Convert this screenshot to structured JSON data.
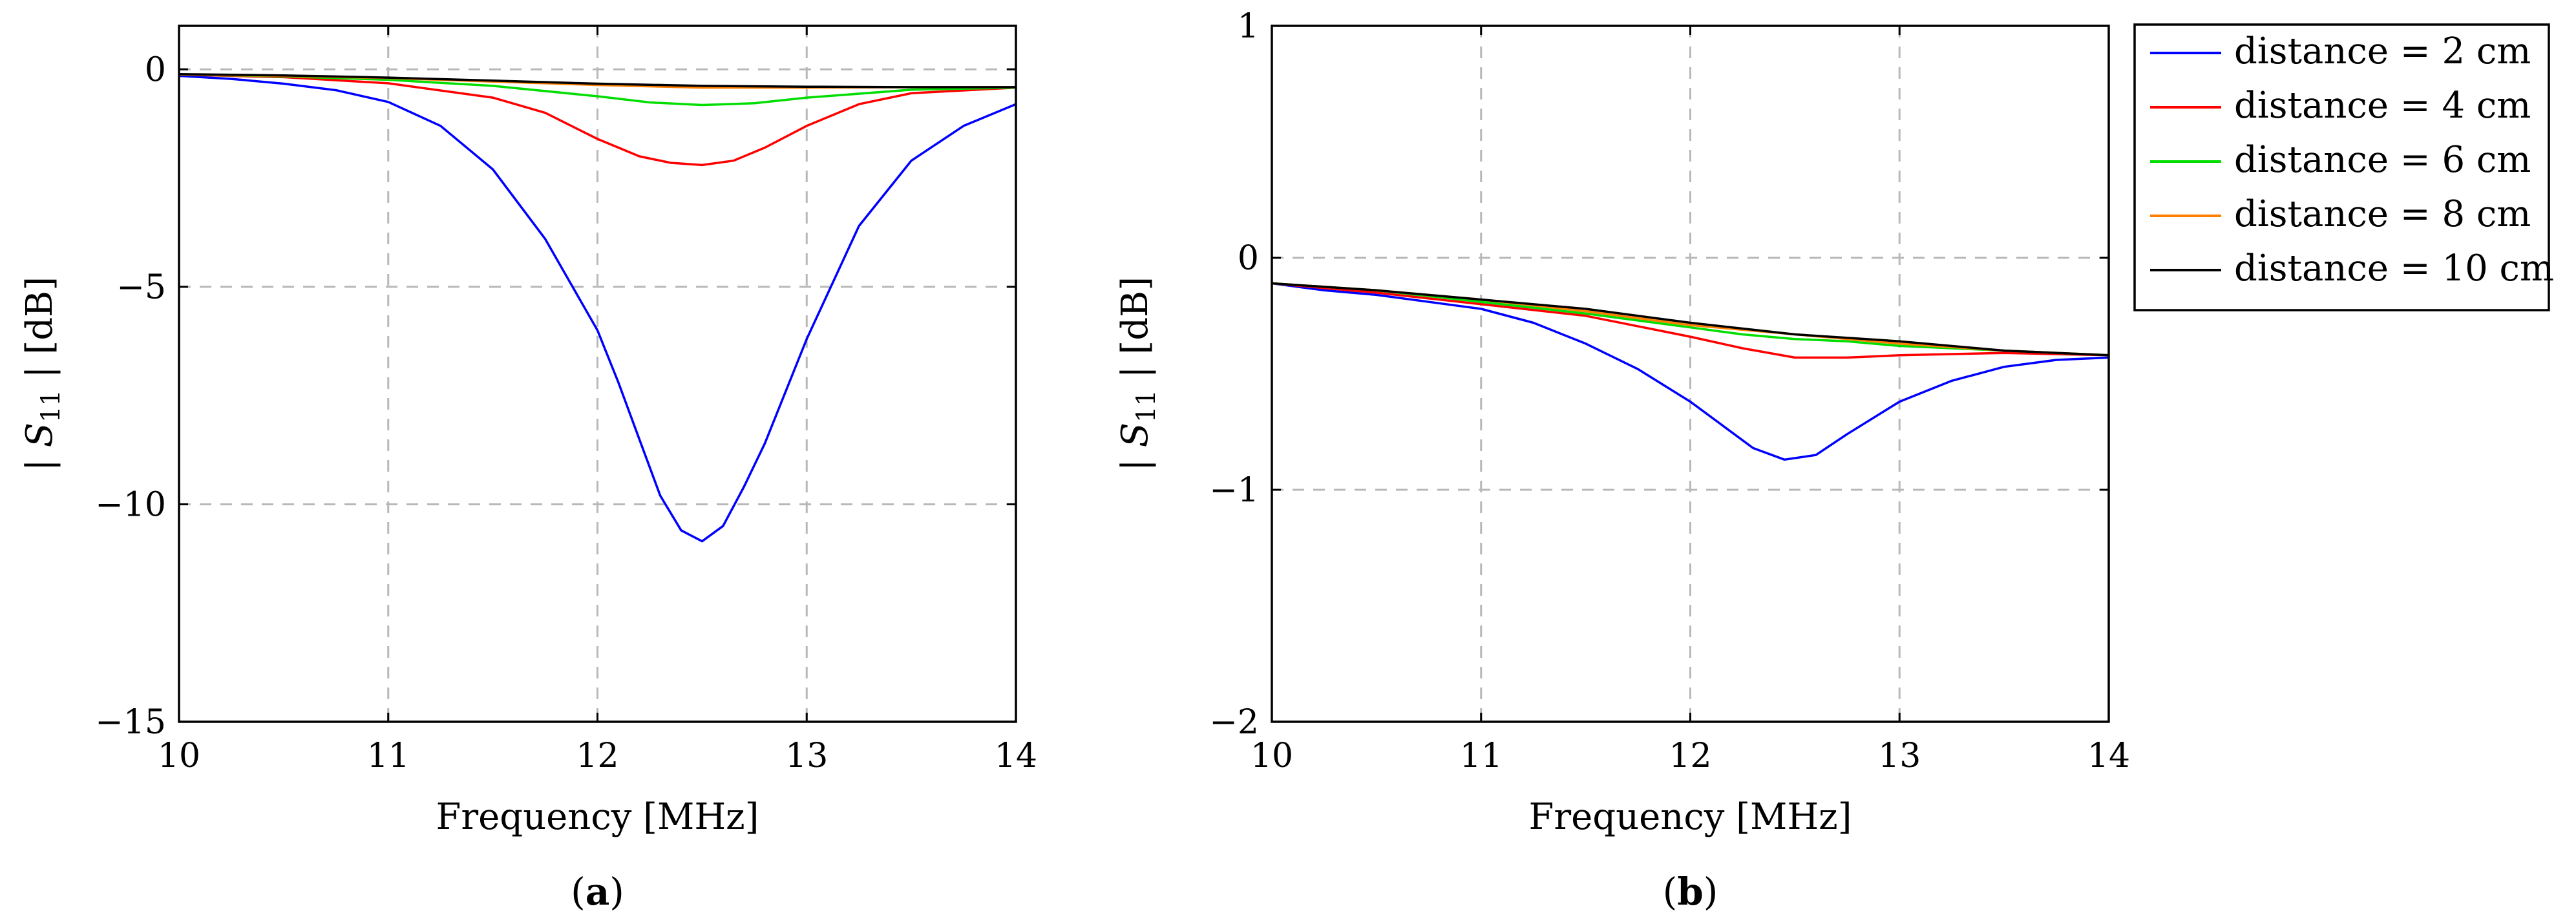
{
  "chart_data": [
    {
      "type": "line",
      "panel": "a",
      "caption_open": "(",
      "caption_letter": "a",
      "caption_close": ")",
      "xlabel": "Frequency [MHz]",
      "ylabel": "| S11 | [dB]",
      "ylabel_parts": {
        "pre": "| ",
        "main": "S",
        "sub": "11",
        "post": " | [dB]"
      },
      "xlim": [
        10,
        14
      ],
      "ylim": [
        -15,
        1
      ],
      "xticks": [
        10,
        11,
        12,
        13,
        14
      ],
      "yticks": [
        -15,
        -10,
        -5,
        0
      ],
      "xtick_labels": [
        "10",
        "11",
        "12",
        "13",
        "14"
      ],
      "ytick_labels": [
        "−15",
        "−10",
        "−5",
        "0"
      ],
      "grid": true,
      "series": [
        {
          "name": "distance = 2 cm",
          "color": "#0000ff",
          "x": [
            10.0,
            10.25,
            10.5,
            10.75,
            11.0,
            11.25,
            11.5,
            11.75,
            12.0,
            12.1,
            12.2,
            12.3,
            12.4,
            12.5,
            12.6,
            12.7,
            12.8,
            12.9,
            13.0,
            13.25,
            13.5,
            13.75,
            14.0
          ],
          "y": [
            -0.15,
            -0.22,
            -0.33,
            -0.48,
            -0.75,
            -1.3,
            -2.3,
            -3.9,
            -6.0,
            -7.2,
            -8.5,
            -9.8,
            -10.6,
            -10.85,
            -10.5,
            -9.6,
            -8.6,
            -7.4,
            -6.2,
            -3.6,
            -2.1,
            -1.3,
            -0.8
          ]
        },
        {
          "name": "distance = 4 cm",
          "color": "#ff0000",
          "x": [
            10.0,
            10.5,
            11.0,
            11.5,
            11.75,
            12.0,
            12.2,
            12.35,
            12.5,
            12.65,
            12.8,
            13.0,
            13.25,
            13.5,
            14.0
          ],
          "y": [
            -0.12,
            -0.18,
            -0.32,
            -0.65,
            -1.0,
            -1.6,
            -2.0,
            -2.15,
            -2.2,
            -2.1,
            -1.8,
            -1.3,
            -0.8,
            -0.55,
            -0.42
          ]
        },
        {
          "name": "distance = 6 cm",
          "color": "#00dd00",
          "x": [
            10.0,
            10.5,
            11.0,
            11.5,
            12.0,
            12.25,
            12.5,
            12.75,
            13.0,
            13.5,
            14.0
          ],
          "y": [
            -0.12,
            -0.16,
            -0.24,
            -0.38,
            -0.62,
            -0.76,
            -0.82,
            -0.78,
            -0.65,
            -0.47,
            -0.42
          ]
        },
        {
          "name": "distance = 8 cm",
          "color": "#ff8000",
          "x": [
            10.0,
            10.5,
            11.0,
            11.5,
            12.0,
            12.5,
            13.0,
            13.5,
            14.0
          ],
          "y": [
            -0.12,
            -0.15,
            -0.2,
            -0.28,
            -0.36,
            -0.42,
            -0.42,
            -0.41,
            -0.41
          ]
        },
        {
          "name": "distance = 10 cm",
          "color": "#000000",
          "x": [
            10.0,
            10.5,
            11.0,
            11.5,
            12.0,
            12.5,
            13.0,
            13.5,
            14.0
          ],
          "y": [
            -0.11,
            -0.14,
            -0.19,
            -0.26,
            -0.33,
            -0.38,
            -0.4,
            -0.41,
            -0.41
          ]
        }
      ]
    },
    {
      "type": "line",
      "panel": "b",
      "caption_open": "(",
      "caption_letter": "b",
      "caption_close": ")",
      "xlabel": "Frequency [MHz]",
      "ylabel": "| S11 | [dB]",
      "ylabel_parts": {
        "pre": "| ",
        "main": "S",
        "sub": "11",
        "post": " | [dB]"
      },
      "xlim": [
        10,
        14
      ],
      "ylim": [
        -2,
        1
      ],
      "xticks": [
        10,
        11,
        12,
        13,
        14
      ],
      "yticks": [
        -2,
        -1,
        0,
        1
      ],
      "xtick_labels": [
        "10",
        "11",
        "12",
        "13",
        "14"
      ],
      "ytick_labels": [
        "−2",
        "−1",
        "0",
        "1"
      ],
      "grid": true,
      "legend_position": "outside-right",
      "series": [
        {
          "name": "distance = 2 cm",
          "color": "#0000ff",
          "x": [
            10.0,
            10.25,
            10.5,
            10.75,
            11.0,
            11.25,
            11.5,
            11.75,
            12.0,
            12.15,
            12.3,
            12.45,
            12.6,
            12.75,
            13.0,
            13.25,
            13.5,
            13.75,
            14.0
          ],
          "y": [
            -0.11,
            -0.14,
            -0.16,
            -0.19,
            -0.22,
            -0.28,
            -0.37,
            -0.48,
            -0.62,
            -0.72,
            -0.82,
            -0.87,
            -0.85,
            -0.76,
            -0.62,
            -0.53,
            -0.47,
            -0.44,
            -0.43
          ]
        },
        {
          "name": "distance = 4 cm",
          "color": "#ff0000",
          "x": [
            10.0,
            10.5,
            11.0,
            11.5,
            12.0,
            12.25,
            12.5,
            12.75,
            13.0,
            13.5,
            14.0
          ],
          "y": [
            -0.11,
            -0.15,
            -0.2,
            -0.25,
            -0.34,
            -0.39,
            -0.43,
            -0.43,
            -0.42,
            -0.41,
            -0.42
          ]
        },
        {
          "name": "distance = 6 cm",
          "color": "#00dd00",
          "x": [
            10.0,
            10.5,
            11.0,
            11.5,
            12.0,
            12.25,
            12.5,
            12.75,
            13.0,
            13.5,
            14.0
          ],
          "y": [
            -0.11,
            -0.14,
            -0.19,
            -0.24,
            -0.3,
            -0.33,
            -0.35,
            -0.36,
            -0.38,
            -0.4,
            -0.42
          ]
        },
        {
          "name": "distance = 8 cm",
          "color": "#ff8000",
          "x": [
            10.0,
            10.5,
            11.0,
            11.5,
            12.0,
            12.5,
            13.0,
            13.5,
            14.0
          ],
          "y": [
            -0.11,
            -0.14,
            -0.18,
            -0.23,
            -0.29,
            -0.33,
            -0.37,
            -0.4,
            -0.42
          ]
        },
        {
          "name": "distance = 10 cm",
          "color": "#000000",
          "x": [
            10.0,
            10.5,
            11.0,
            11.5,
            12.0,
            12.5,
            13.0,
            13.5,
            14.0
          ],
          "y": [
            -0.11,
            -0.14,
            -0.18,
            -0.22,
            -0.28,
            -0.33,
            -0.36,
            -0.4,
            -0.42
          ]
        }
      ]
    }
  ]
}
